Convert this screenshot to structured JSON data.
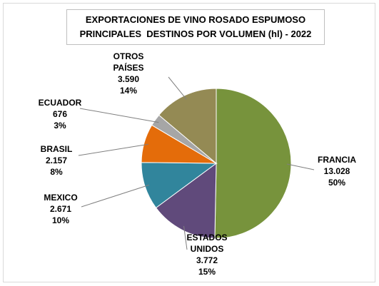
{
  "chart_data": {
    "type": "pie",
    "title": "EXPORTACIONES DE VINO ROSADO ESPUMOSO",
    "subtitle": "PRINCIPALES  DESTINOS POR VOLUMEN (hl) - 2022",
    "categories": [
      "FRANCIA",
      "ESTADOS UNIDOS",
      "MEXICO",
      "BRASIL",
      "ECUADOR",
      "OTROS PAÍSES"
    ],
    "values": [
      13028,
      3772,
      2671,
      2157,
      676,
      3590
    ],
    "value_labels": [
      "13.028",
      "3.772",
      "2.671",
      "2.157",
      "676",
      "3.590"
    ],
    "percent_labels": [
      "50%",
      "15%",
      "10%",
      "8%",
      "3%",
      "14%"
    ],
    "colors": [
      "#77933c",
      "#604a7b",
      "#31859c",
      "#e46c0a",
      "#a6a6a6",
      "#948a54"
    ]
  }
}
